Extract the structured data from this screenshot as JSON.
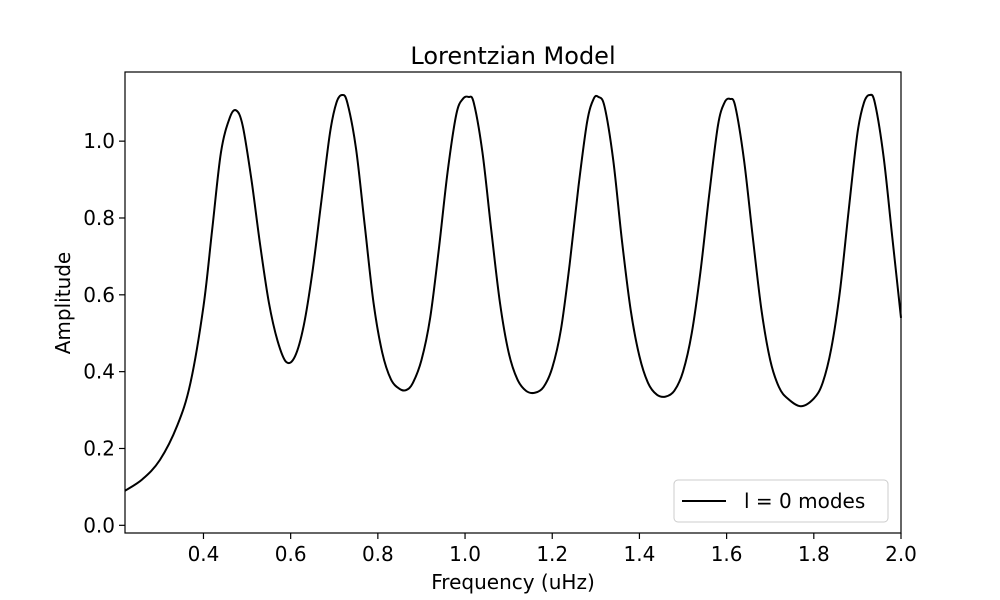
{
  "chart_data": {
    "type": "line",
    "title": "Lorentzian Model",
    "xlabel": "Frequency (uHz)",
    "ylabel": "Amplitude",
    "xlim": [
      0.22,
      2.0
    ],
    "ylim": [
      -0.02,
      1.18
    ],
    "xticks": [
      "0.4",
      "0.6",
      "0.8",
      "1.0",
      "1.2",
      "1.4",
      "1.6",
      "1.8",
      "2.0"
    ],
    "yticks": [
      "0.0",
      "0.2",
      "0.4",
      "0.6",
      "0.8",
      "1.0"
    ],
    "grid": false,
    "legend_position": "lower-right",
    "series": [
      {
        "name": "l = 0 modes",
        "color": "#000000",
        "x": [
          0.22,
          0.26,
          0.3,
          0.34,
          0.37,
          0.4,
          0.42,
          0.44,
          0.46,
          0.475,
          0.49,
          0.51,
          0.53,
          0.55,
          0.57,
          0.59,
          0.61,
          0.63,
          0.65,
          0.67,
          0.69,
          0.705,
          0.718,
          0.73,
          0.75,
          0.77,
          0.79,
          0.81,
          0.83,
          0.85,
          0.865,
          0.88,
          0.9,
          0.92,
          0.94,
          0.96,
          0.98,
          0.995,
          1.008,
          1.02,
          1.04,
          1.06,
          1.08,
          1.1,
          1.12,
          1.14,
          1.16,
          1.18,
          1.2,
          1.22,
          1.24,
          1.26,
          1.28,
          1.295,
          1.306,
          1.32,
          1.34,
          1.36,
          1.38,
          1.4,
          1.42,
          1.44,
          1.46,
          1.48,
          1.5,
          1.52,
          1.54,
          1.56,
          1.58,
          1.595,
          1.608,
          1.62,
          1.64,
          1.66,
          1.68,
          1.7,
          1.72,
          1.74,
          1.77,
          1.8,
          1.82,
          1.84,
          1.86,
          1.88,
          1.9,
          1.915,
          1.928,
          1.94,
          1.96,
          1.98,
          2.0
        ],
        "y": [
          0.09,
          0.12,
          0.17,
          0.26,
          0.37,
          0.57,
          0.77,
          0.97,
          1.06,
          1.08,
          1.04,
          0.9,
          0.73,
          0.58,
          0.48,
          0.425,
          0.44,
          0.52,
          0.66,
          0.84,
          1.02,
          1.1,
          1.12,
          1.1,
          0.98,
          0.78,
          0.58,
          0.45,
          0.38,
          0.355,
          0.352,
          0.37,
          0.43,
          0.54,
          0.72,
          0.92,
          1.07,
          1.11,
          1.115,
          1.1,
          0.97,
          0.77,
          0.58,
          0.45,
          0.38,
          0.35,
          0.345,
          0.36,
          0.41,
          0.51,
          0.68,
          0.88,
          1.05,
          1.11,
          1.115,
          1.09,
          0.95,
          0.74,
          0.56,
          0.44,
          0.37,
          0.34,
          0.335,
          0.35,
          0.4,
          0.5,
          0.66,
          0.86,
          1.04,
          1.1,
          1.11,
          1.09,
          0.95,
          0.75,
          0.56,
          0.43,
          0.36,
          0.33,
          0.31,
          0.33,
          0.37,
          0.46,
          0.61,
          0.82,
          1.02,
          1.1,
          1.12,
          1.1,
          0.96,
          0.75,
          0.54
        ]
      }
    ]
  }
}
